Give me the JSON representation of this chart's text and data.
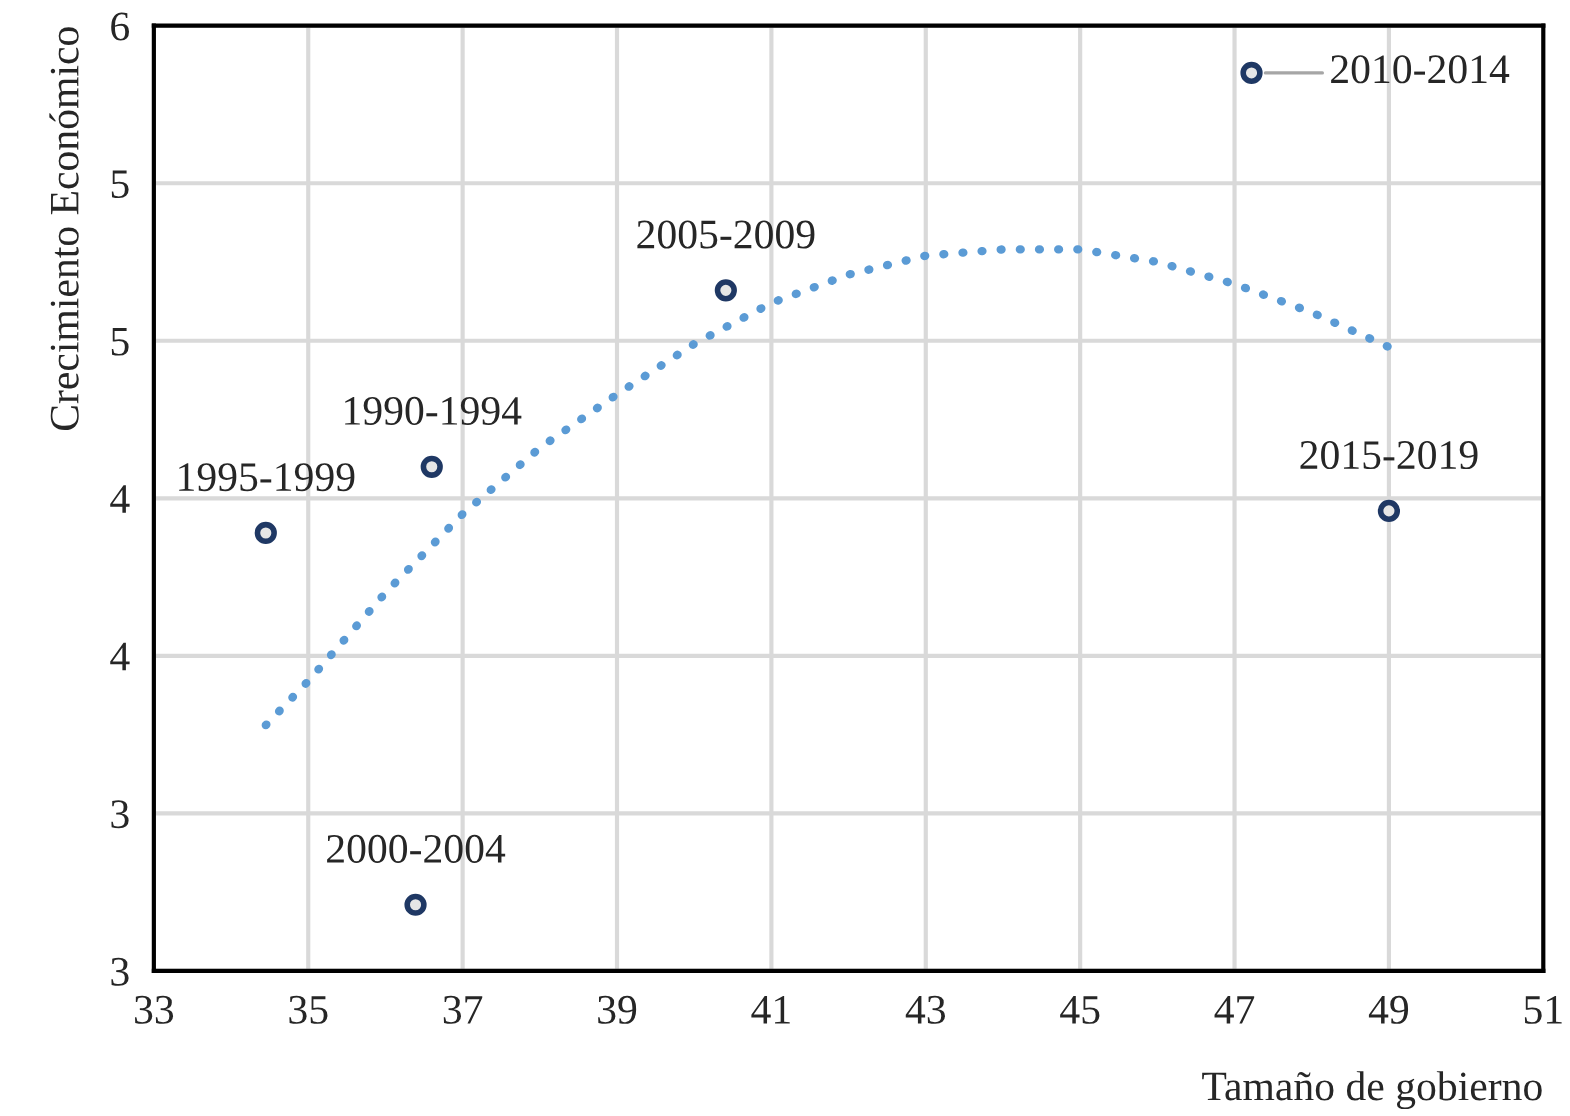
{
  "chart_data": {
    "type": "scatter",
    "xlabel": "Tamaño de gobierno",
    "ylabel": "Crecimiento Económico",
    "series": [
      {
        "color": "#1f3864",
        "x": [
          34.45,
          36.6,
          36.39,
          40.41,
          47.22,
          49.0
        ],
        "values": [
          4.39,
          4.6,
          3.21,
          5.16,
          5.85,
          4.46
        ],
        "marker": "circle"
      },
      {
        "type": "line",
        "color": "#5b9bd5",
        "line_style": "dotted",
        "marker": "none",
        "x": [
          34.45,
          35,
          36,
          37,
          38,
          39,
          40,
          41,
          42,
          43,
          44,
          44.5,
          45,
          46,
          47,
          48,
          49
        ],
        "values": [
          3.78,
          3.92,
          4.2,
          4.45,
          4.66,
          4.83,
          4.99,
          5.12,
          5.21,
          5.27,
          5.29,
          5.29,
          5.29,
          5.25,
          5.18,
          5.09,
          4.98
        ]
      }
    ],
    "annotations": [
      {
        "text": "1995-1999",
        "x": 34.45,
        "y": 4.39
      },
      {
        "text": "1990-1994",
        "x": 36.6,
        "y": 4.6
      },
      {
        "text": "2000-2004",
        "x": 36.39,
        "y": 3.21
      },
      {
        "text": "2005-2009",
        "x": 40.41,
        "y": 5.16
      },
      {
        "text": "2010-2014",
        "x": 47.22,
        "y": 5.85
      },
      {
        "text": "2015-2019",
        "x": 49.0,
        "y": 4.46
      }
    ],
    "xlim": [
      33,
      51
    ],
    "xticks": [
      33,
      35,
      37,
      39,
      41,
      43,
      45,
      47,
      49,
      51
    ],
    "ylim": [
      3,
      6
    ],
    "yticks": [
      {
        "value": 3,
        "label": "3"
      },
      {
        "value": 3.5,
        "label": "3"
      },
      {
        "value": 4,
        "label": "4"
      },
      {
        "value": 4.5,
        "label": "4"
      },
      {
        "value": 5,
        "label": "5"
      },
      {
        "value": 5.5,
        "label": "5"
      },
      {
        "value": 6,
        "label": "6"
      }
    ],
    "grid": true,
    "legend": false
  }
}
